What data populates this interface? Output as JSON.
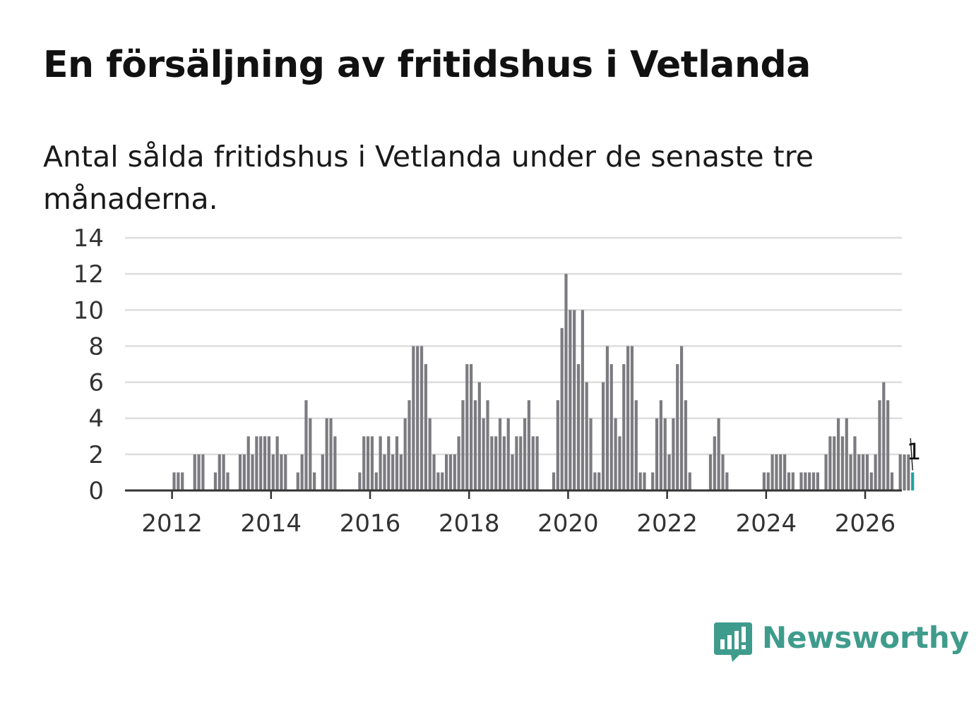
{
  "title": "En försäljning av fritidshus i Vetlanda",
  "subtitle": "Antal sålda fritidshus i Vetlanda under de senaste tre månaderna.",
  "brand": {
    "name": "Newsworthy",
    "color": "#3f9c8c",
    "icon": "newsworthy-logo-icon"
  },
  "colors": {
    "bar": "#7b7b80",
    "highlight": "#1fa3a0",
    "grid": "#dddddd",
    "axis": "#333333"
  },
  "chart_data": {
    "type": "bar",
    "title": "En försäljning av fritidshus i Vetlanda",
    "subtitle": "Antal sålda fritidshus i Vetlanda under de senaste tre månaderna.",
    "xlabel": "",
    "ylabel": "",
    "ylim": [
      0,
      14
    ],
    "yticks": [
      0,
      2,
      4,
      6,
      8,
      10,
      12,
      14
    ],
    "xticks": [
      "2012",
      "2014",
      "2016",
      "2018",
      "2020",
      "2022",
      "2024",
      "2026"
    ],
    "grid": true,
    "period": "monthly",
    "x_start": "2011-03",
    "series": [
      {
        "values": [
          0,
          0,
          0,
          0,
          0,
          0,
          0,
          0,
          0,
          0,
          1,
          1,
          1,
          0,
          0,
          2,
          2,
          2,
          0,
          0,
          1,
          2,
          2,
          1,
          0,
          0,
          2,
          2,
          3,
          2,
          3,
          3,
          3,
          3,
          2,
          3,
          2,
          2,
          0,
          0,
          1,
          2,
          5,
          4,
          1,
          0,
          2,
          4,
          4,
          3,
          0,
          0,
          0,
          0,
          0,
          1,
          3,
          3,
          3,
          1,
          3,
          2,
          3,
          2,
          3,
          2,
          4,
          5,
          8,
          8,
          8,
          7,
          4,
          2,
          1,
          1,
          2,
          2,
          2,
          3,
          5,
          7,
          7,
          5,
          6,
          4,
          5,
          3,
          3,
          4,
          3,
          4,
          2,
          3,
          3,
          4,
          5,
          3,
          3,
          0,
          0,
          0,
          1,
          5,
          9,
          12,
          10,
          10,
          7,
          10,
          6,
          4,
          1,
          1,
          6,
          8,
          7,
          4,
          3,
          7,
          8,
          8,
          5,
          1,
          1,
          0,
          1,
          4,
          5,
          4,
          2,
          4,
          7,
          8,
          5,
          1,
          0,
          0,
          0,
          0,
          2,
          3,
          4,
          2,
          1,
          0,
          0,
          0,
          0,
          0,
          0,
          0,
          0,
          1,
          1,
          2,
          2,
          2,
          2,
          1,
          1,
          0,
          1,
          1,
          1,
          1,
          1,
          0,
          2,
          3,
          3,
          4,
          3,
          4,
          2,
          3,
          2,
          2,
          2,
          1,
          2,
          5,
          6,
          5,
          1,
          0,
          2,
          2,
          2,
          1
        ]
      }
    ],
    "highlight": {
      "last_value": 1,
      "label": "1"
    }
  }
}
